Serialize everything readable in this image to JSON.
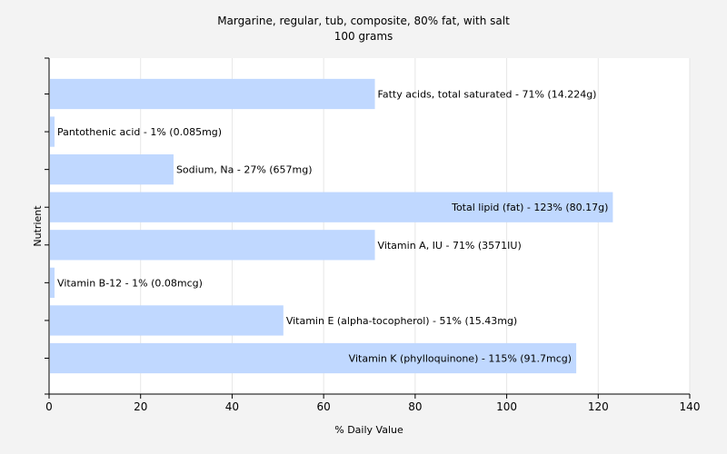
{
  "chart_data": {
    "type": "bar",
    "orientation": "horizontal",
    "title": "Margarine, regular, tub, composite, 80% fat, with salt",
    "subtitle": "100 grams",
    "xlabel": "% Daily Value",
    "ylabel": "Nutrient",
    "xlim": [
      0,
      140
    ],
    "xticks": [
      0,
      20,
      40,
      60,
      80,
      100,
      120,
      140
    ],
    "grid": true,
    "bar_color": "#c0d8ff",
    "bars": [
      {
        "name": "Fatty acids, total saturated",
        "value": 71,
        "label": "Fatty acids, total saturated - 71% (14.224g)"
      },
      {
        "name": "Pantothenic acid",
        "value": 1,
        "label": "Pantothenic acid - 1% (0.085mg)"
      },
      {
        "name": "Sodium, Na",
        "value": 27,
        "label": "Sodium, Na - 27% (657mg)"
      },
      {
        "name": "Total lipid (fat)",
        "value": 123,
        "label": "Total lipid (fat) - 123% (80.17g)"
      },
      {
        "name": "Vitamin A, IU",
        "value": 71,
        "label": "Vitamin A, IU - 71% (3571IU)"
      },
      {
        "name": "Vitamin B-12",
        "value": 1,
        "label": "Vitamin B-12 - 1% (0.08mcg)"
      },
      {
        "name": "Vitamin E (alpha-tocopherol)",
        "value": 51,
        "label": "Vitamin E (alpha-tocopherol) - 51% (15.43mg)"
      },
      {
        "name": "Vitamin K (phylloquinone)",
        "value": 115,
        "label": "Vitamin K (phylloquinone) - 115% (91.7mcg)"
      }
    ]
  }
}
